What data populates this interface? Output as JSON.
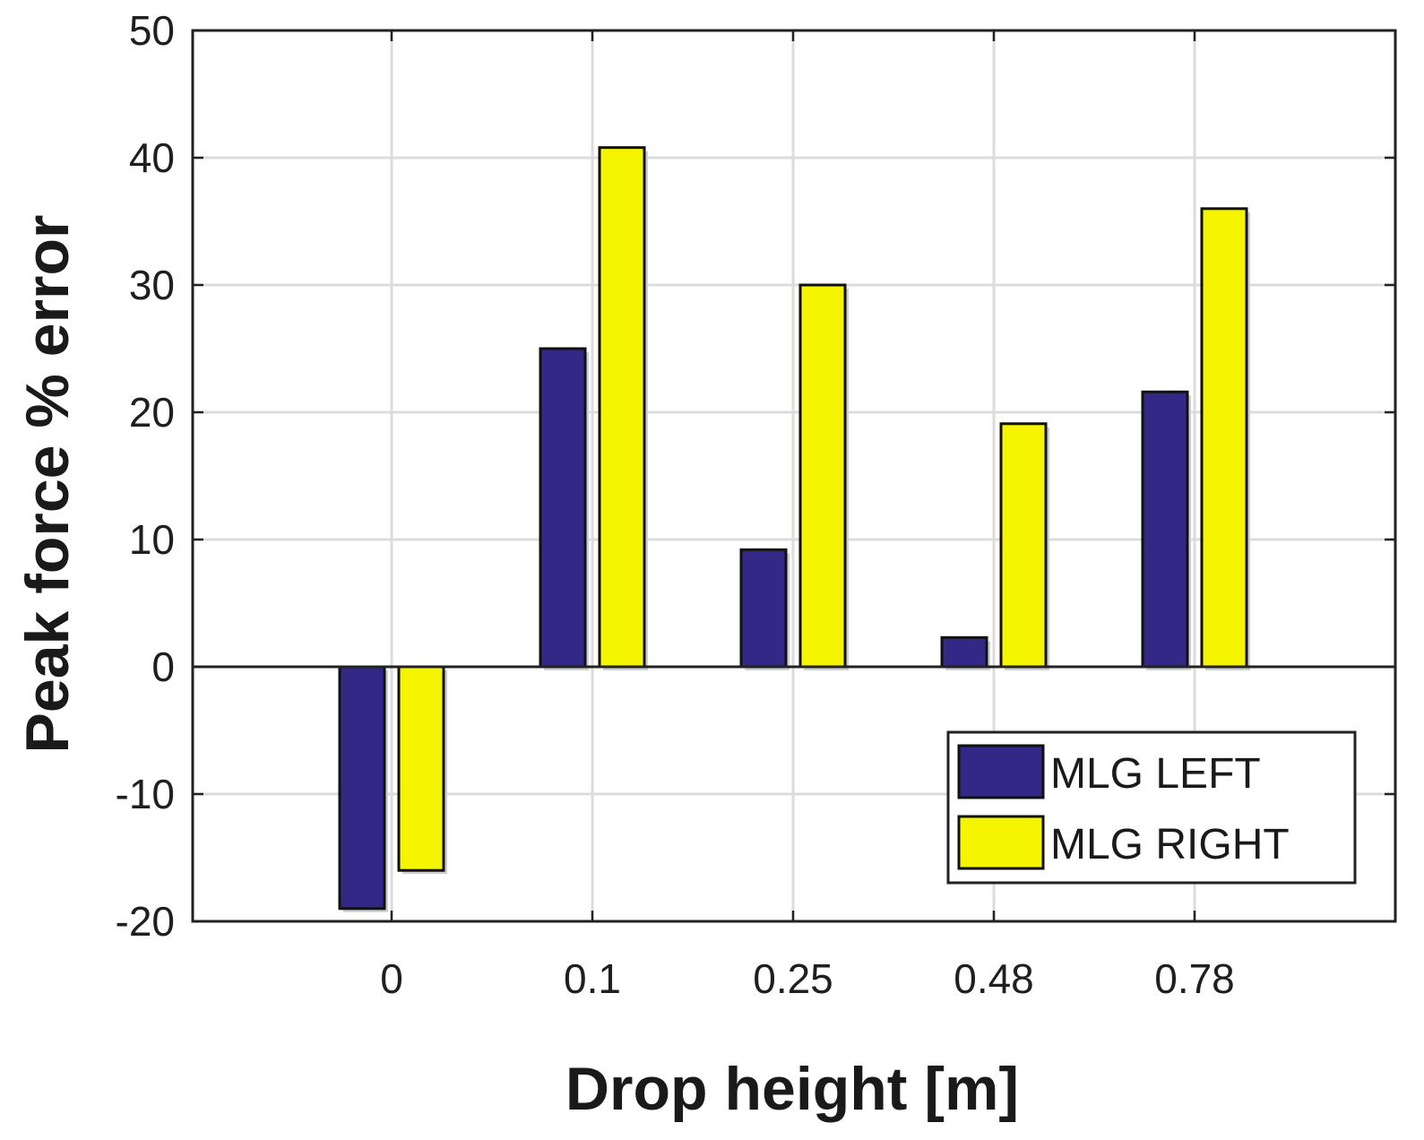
{
  "chart_data": {
    "type": "bar",
    "title": "",
    "xlabel": "Drop height [m]",
    "ylabel": "Peak force % error",
    "categories": [
      "0",
      "0.1",
      "0.25",
      "0.48",
      "0.78"
    ],
    "series": [
      {
        "name": "MLG LEFT",
        "color": "#332885",
        "values": [
          -19,
          25,
          9.2,
          2.3,
          21.6
        ]
      },
      {
        "name": "MLG RIGHT",
        "color": "#f5f500",
        "values": [
          -16,
          40.8,
          30,
          19.1,
          36
        ]
      }
    ],
    "ylim": [
      -20,
      50
    ],
    "yticks": [
      "-20",
      "-10",
      "0",
      "10",
      "20",
      "30",
      "40",
      "50"
    ],
    "grid": true,
    "legend_position": "lower-right"
  }
}
